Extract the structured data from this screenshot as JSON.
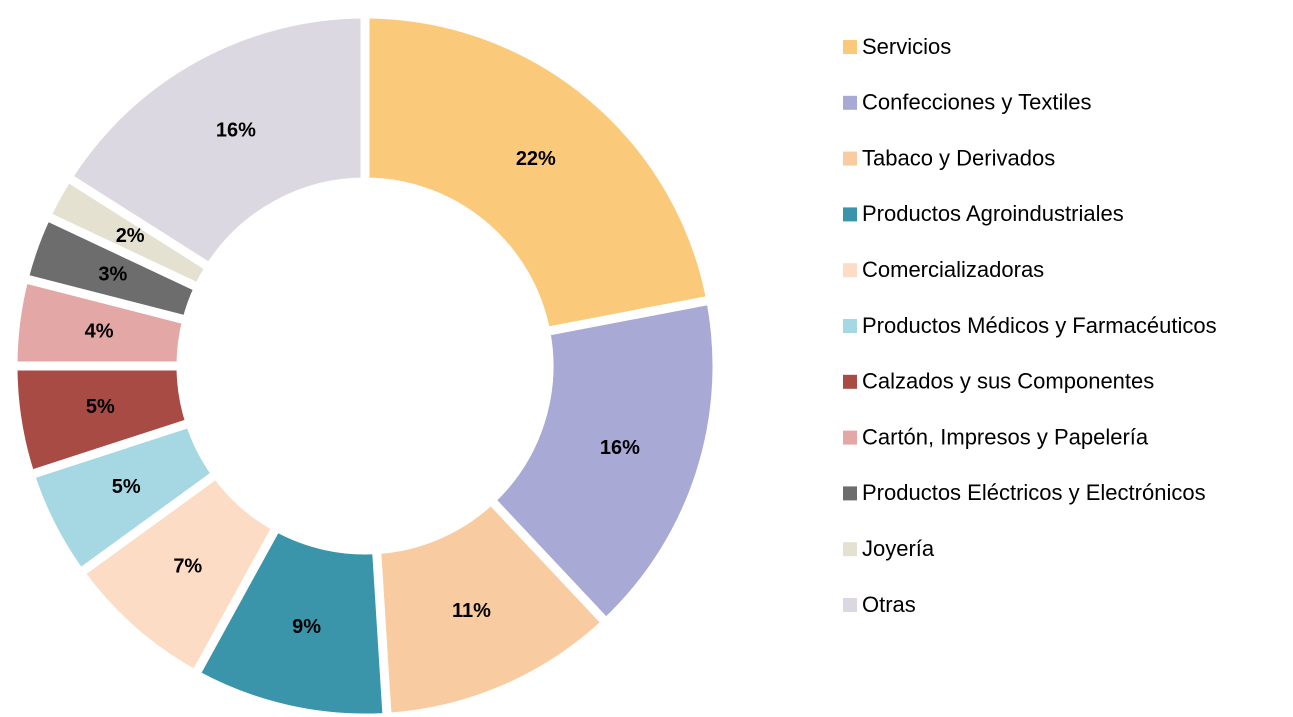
{
  "chart_data": {
    "type": "donut",
    "categories": [
      "Servicios",
      "Confecciones y Textiles",
      "Tabaco y Derivados",
      "Productos Agroindustriales",
      "Comercializadoras",
      "Productos Médicos y Farmacéuticos",
      "Calzados y sus Componentes",
      "Cartón, Impresos y Papelería",
      "Productos Eléctricos y Electrónicos",
      "Joyería",
      "Otras"
    ],
    "values": [
      22,
      16,
      11,
      9,
      7,
      5,
      5,
      4,
      3,
      2,
      16
    ],
    "value_labels": [
      "22%",
      "16%",
      "11%",
      "9%",
      "7%",
      "5%",
      "5%",
      "4%",
      "3%",
      "2%",
      "16%"
    ],
    "colors": [
      "#FBC97A",
      "#A9A9D6",
      "#F9CBA0",
      "#3B95AA",
      "#FCDCC4",
      "#A6D8E4",
      "#A84B45",
      "#E3A7A6",
      "#6D6D6D",
      "#E4E1D1",
      "#DCD8E2"
    ],
    "legend": "right"
  }
}
